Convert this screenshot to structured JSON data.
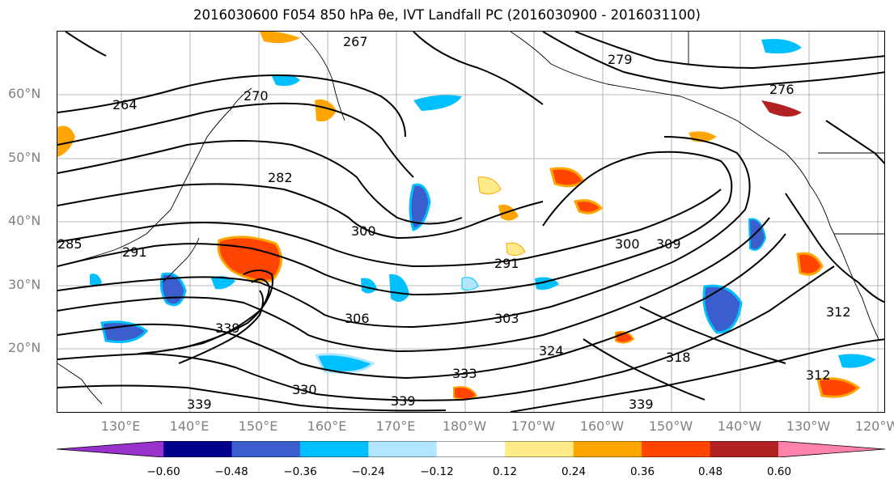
{
  "title": "2016030600 F054 850 hPa θe, IVT Landfall PC (2016030900 - 2016031100)",
  "latitude_labels": [
    "60°N",
    "50°N",
    "40°N",
    "30°N",
    "20°N"
  ],
  "longitude_labels": [
    "130°E",
    "140°E",
    "150°E",
    "160°E",
    "170°E",
    "180°W",
    "170°W",
    "160°W",
    "150°W",
    "140°W",
    "130°W",
    "120°W"
  ],
  "contour_labels": [
    "267",
    "264",
    "270",
    "282",
    "300",
    "291",
    "300",
    "309",
    "306",
    "303",
    "312",
    "324",
    "339",
    "330",
    "339",
    "333",
    "318",
    "312",
    "276",
    "279",
    "285",
    "291",
    "339",
    "339"
  ],
  "colorbar": {
    "ticks": [
      "−0.60",
      "−0.48",
      "−0.36",
      "−0.24",
      "−0.12",
      "0.12",
      "0.24",
      "0.36",
      "0.48",
      "0.60"
    ],
    "colors": [
      "#9932cc",
      "#00008b",
      "#3a5fcd",
      "#00bfff",
      "#b2e5ff",
      "#ffffff",
      "#ffeb8a",
      "#ffa500",
      "#ff4500",
      "#b22222",
      "#ff82ab"
    ]
  }
}
